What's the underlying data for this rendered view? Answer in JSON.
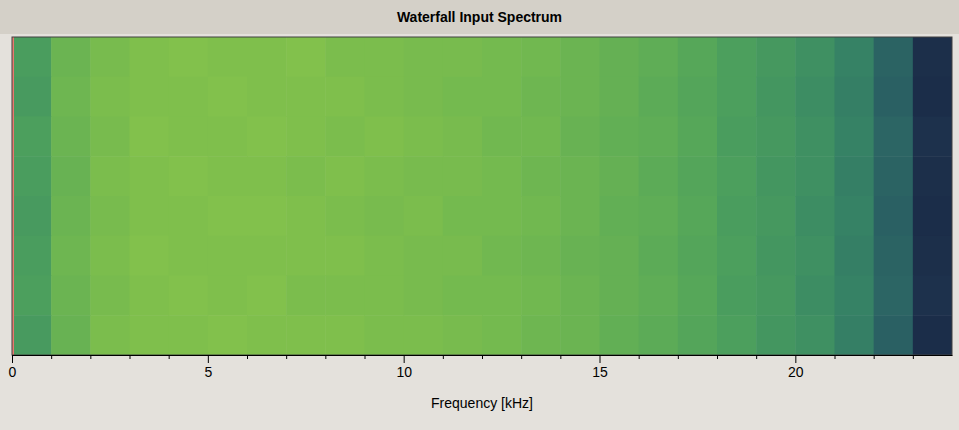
{
  "chart_data": {
    "type": "heatmap",
    "title": "Waterfall Input Spectrum",
    "x_label": "Frequency [kHz]",
    "xlim": [
      0,
      24
    ],
    "xticks": [
      0,
      5,
      10,
      15,
      20
    ],
    "xminor_ticks": [
      1,
      2,
      3,
      4,
      6,
      7,
      8,
      9,
      11,
      12,
      13,
      14,
      16,
      17,
      18,
      19,
      21,
      22,
      23
    ],
    "tick_labels": "x",
    "zlim": [
      0,
      100
    ],
    "bins": [
      0,
      1,
      2,
      3,
      4,
      5,
      6,
      7,
      8,
      9,
      10,
      11,
      12,
      13,
      14,
      15,
      16,
      17,
      18,
      19,
      20,
      21,
      22,
      23,
      24
    ],
    "cells": [
      [
        62,
        74,
        78,
        80,
        81,
        80,
        80,
        81,
        79,
        79,
        78,
        78,
        77,
        76,
        74,
        72,
        70,
        67,
        63,
        60,
        56,
        50,
        38,
        18
      ],
      [
        61,
        75,
        79,
        80,
        80,
        81,
        80,
        80,
        80,
        79,
        78,
        77,
        77,
        75,
        74,
        72,
        69,
        66,
        63,
        59,
        55,
        49,
        37,
        17
      ],
      [
        63,
        74,
        78,
        81,
        80,
        80,
        81,
        80,
        79,
        80,
        79,
        78,
        76,
        76,
        73,
        71,
        70,
        67,
        62,
        60,
        56,
        50,
        39,
        19
      ],
      [
        62,
        73,
        79,
        80,
        81,
        80,
        80,
        79,
        80,
        79,
        78,
        78,
        77,
        75,
        74,
        72,
        69,
        66,
        63,
        59,
        56,
        49,
        38,
        18
      ],
      [
        61,
        74,
        78,
        80,
        80,
        81,
        81,
        80,
        79,
        78,
        79,
        77,
        77,
        76,
        74,
        71,
        70,
        67,
        62,
        60,
        55,
        50,
        37,
        17
      ],
      [
        62,
        75,
        79,
        81,
        80,
        80,
        80,
        80,
        80,
        79,
        78,
        78,
        76,
        75,
        73,
        72,
        69,
        66,
        63,
        59,
        56,
        49,
        38,
        18
      ],
      [
        63,
        74,
        78,
        80,
        81,
        80,
        81,
        79,
        79,
        79,
        78,
        77,
        77,
        76,
        74,
        72,
        70,
        67,
        62,
        60,
        55,
        50,
        39,
        19
      ],
      [
        61,
        73,
        79,
        80,
        80,
        81,
        80,
        80,
        80,
        79,
        79,
        78,
        77,
        75,
        74,
        71,
        69,
        66,
        63,
        59,
        56,
        49,
        37,
        17
      ]
    ]
  }
}
